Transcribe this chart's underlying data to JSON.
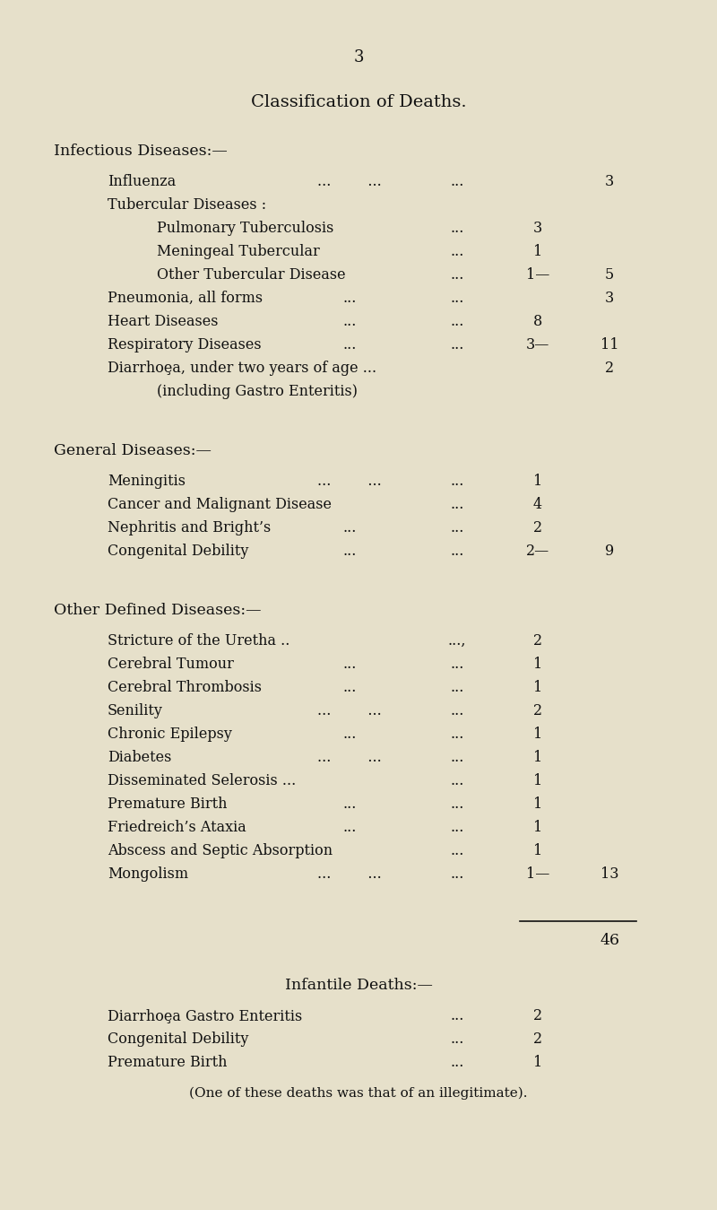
{
  "bg_color": "#e6e0ca",
  "text_color": "#111111",
  "page_number": "3",
  "main_title": "Classification of Deaths.",
  "sections": [
    {
      "header": "Infectious Diseases:—",
      "items": [
        {
          "level": 1,
          "text": "Influenza",
          "mid_dots": "...        ...",
          "right_dots": "...",
          "val1": "",
          "dash": "",
          "val2": "3"
        },
        {
          "level": 1,
          "text": "Tubercular Diseases :",
          "mid_dots": "",
          "right_dots": "",
          "val1": "",
          "dash": "",
          "val2": ""
        },
        {
          "level": 2,
          "text": "Pulmonary Tuberculosis",
          "mid_dots": "",
          "right_dots": "...",
          "val1": "3",
          "dash": "",
          "val2": ""
        },
        {
          "level": 2,
          "text": "Meningeal Tubercular",
          "mid_dots": "",
          "right_dots": "...",
          "val1": "1",
          "dash": "",
          "val2": ""
        },
        {
          "level": 2,
          "text": "Other Tubercular Disease",
          "mid_dots": "",
          "right_dots": "...",
          "val1": "1—",
          "dash": "",
          "val2": "5"
        },
        {
          "level": 1,
          "text": "Pneumonia, all forms",
          "mid_dots": "...",
          "right_dots": "...",
          "val1": "",
          "dash": "",
          "val2": "3"
        },
        {
          "level": 1,
          "text": "Heart Diseases",
          "mid_dots": "...",
          "right_dots": "...",
          "val1": "8",
          "dash": "",
          "val2": ""
        },
        {
          "level": 1,
          "text": "Respiratory Diseases",
          "mid_dots": "...",
          "right_dots": "...",
          "val1": "3—",
          "dash": "",
          "val2": "11"
        },
        {
          "level": 1,
          "text": "Diarrhoȩa, under two years of age ...",
          "mid_dots": "",
          "right_dots": "",
          "val1": "",
          "dash": "",
          "val2": "2"
        },
        {
          "level": 2,
          "text": "(including Gastro Enteritis)",
          "mid_dots": "",
          "right_dots": "",
          "val1": "",
          "dash": "",
          "val2": ""
        }
      ]
    },
    {
      "header": "General Diseases:—",
      "items": [
        {
          "level": 1,
          "text": "Meningitis",
          "mid_dots": "...        ...",
          "right_dots": "...",
          "val1": "1",
          "dash": "",
          "val2": ""
        },
        {
          "level": 1,
          "text": "Cancer and Malignant Disease",
          "mid_dots": "",
          "right_dots": "...",
          "val1": "4",
          "dash": "",
          "val2": ""
        },
        {
          "level": 1,
          "text": "Nephritis and Bright’s",
          "mid_dots": "...",
          "right_dots": "...",
          "val1": "2",
          "dash": "",
          "val2": ""
        },
        {
          "level": 1,
          "text": "Congenital Debility",
          "mid_dots": "...",
          "right_dots": "...",
          "val1": "2—",
          "dash": "",
          "val2": "9"
        }
      ]
    },
    {
      "header": "Other Defined Diseases:—",
      "items": [
        {
          "level": 1,
          "text": "Stricture of the Uretha ..",
          "mid_dots": "",
          "right_dots": "...,",
          "val1": "2",
          "dash": "",
          "val2": ""
        },
        {
          "level": 1,
          "text": "Cerebral Tumour",
          "mid_dots": "...",
          "right_dots": "...",
          "val1": "1",
          "dash": "",
          "val2": ""
        },
        {
          "level": 1,
          "text": "Cerebral Thrombosis",
          "mid_dots": "...",
          "right_dots": "...",
          "val1": "1",
          "dash": "",
          "val2": ""
        },
        {
          "level": 1,
          "text": "Senility",
          "mid_dots": "...        ...",
          "right_dots": "...",
          "val1": "2",
          "dash": "",
          "val2": ""
        },
        {
          "level": 1,
          "text": "Chronic Epilepsy",
          "mid_dots": "...",
          "right_dots": "...",
          "val1": "1",
          "dash": "",
          "val2": ""
        },
        {
          "level": 1,
          "text": "Diabetes",
          "mid_dots": "...        ...",
          "right_dots": "...",
          "val1": "1",
          "dash": "",
          "val2": ""
        },
        {
          "level": 1,
          "text": "Disseminated Selerosis ...",
          "mid_dots": "",
          "right_dots": "...",
          "val1": "1",
          "dash": "",
          "val2": ""
        },
        {
          "level": 1,
          "text": "Premature Birth",
          "mid_dots": "...",
          "right_dots": "...",
          "val1": "1",
          "dash": "",
          "val2": ""
        },
        {
          "level": 1,
          "text": "Friedreich’s Ataxia",
          "mid_dots": "...",
          "right_dots": "...",
          "val1": "1",
          "dash": "",
          "val2": ""
        },
        {
          "level": 1,
          "text": "Abscess and Septic Absorption",
          "mid_dots": "",
          "right_dots": "...",
          "val1": "1",
          "dash": "",
          "val2": ""
        },
        {
          "level": 1,
          "text": "Mongolism",
          "mid_dots": "...        ...",
          "right_dots": "...",
          "val1": "1—",
          "dash": "",
          "val2": "13"
        }
      ]
    }
  ],
  "total": "46",
  "infantile_header": "Infantile Deaths:—",
  "infantile_items": [
    {
      "text": "Diarrhoȩa Gastro Enteritis",
      "right_dots": "...",
      "val1": "2"
    },
    {
      "text": "Congenital Debility",
      "right_dots": "...",
      "val1": "2"
    },
    {
      "text": "Premature Birth",
      "right_dots": "...",
      "val1": "1"
    }
  ],
  "footer": "(One of these deaths was that of an illegitimate).",
  "fs_page": 13,
  "fs_title": 14,
  "fs_header": 12.5,
  "fs_body": 11.5
}
